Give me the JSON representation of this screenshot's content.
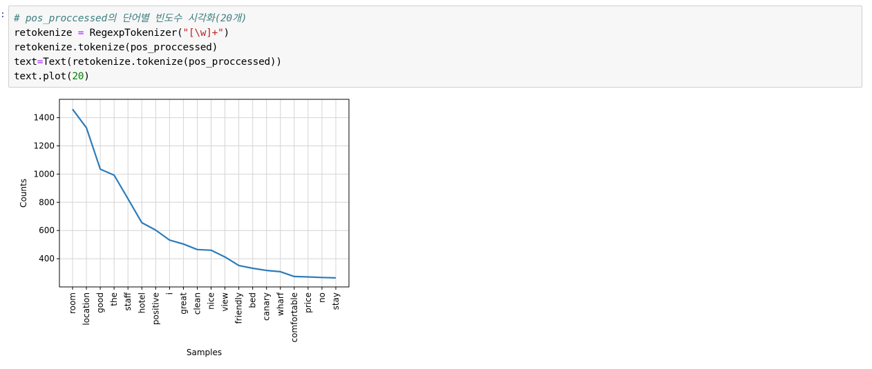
{
  "cell": {
    "prompt": ":",
    "lines": {
      "l1": {
        "comment": "# pos_proccessed의 단어별 빈도수 시각화(20개)"
      },
      "l2": {
        "a": "retokenize ",
        "op": "=",
        "b": " RegexpTokenizer(",
        "str": "\"[\\w]+\"",
        "c": ")"
      },
      "l3": {
        "a": "retokenize.tokenize(pos_proccessed)"
      },
      "l4": {
        "a": "text",
        "op": "=",
        "b": "Text(retokenize.tokenize(pos_proccessed))"
      },
      "l5": {
        "a": "text.plot(",
        "num": "20",
        "b": ")"
      }
    }
  },
  "colors": {
    "line": "#2b7bba",
    "grid": "#d4d4d4",
    "axis": "#000000"
  },
  "chart_data": {
    "type": "line",
    "title": "",
    "xlabel": "Samples",
    "ylabel": "Counts",
    "categories": [
      "room",
      "location",
      "good",
      "the",
      "staff",
      "hotel",
      "positive",
      "i",
      "great",
      "clean",
      "nice",
      "view",
      "friendly",
      "bed",
      "canary",
      "wharf",
      "comfortable",
      "price",
      "no",
      "stay"
    ],
    "values": [
      1460,
      1328,
      1035,
      992,
      825,
      655,
      603,
      532,
      504,
      465,
      460,
      412,
      352,
      332,
      317,
      308,
      274,
      271,
      267,
      264
    ],
    "yticks": [
      400,
      600,
      800,
      1000,
      1200,
      1400
    ],
    "ylim": [
      200,
      1530
    ],
    "grid": true
  }
}
